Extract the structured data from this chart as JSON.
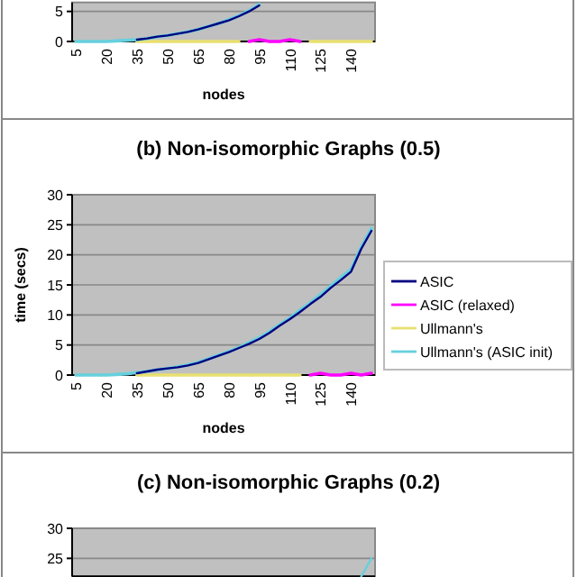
{
  "chart_data": [
    {
      "type": "line",
      "xlabel": "nodes",
      "categories": [
        "5",
        null,
        null,
        "20",
        null,
        null,
        "35",
        null,
        null,
        "50",
        null,
        null,
        "65",
        null,
        null,
        "80",
        null,
        null,
        "95",
        null,
        null,
        "110",
        null,
        null,
        "125",
        null,
        null,
        "140",
        null,
        null
      ],
      "ylim": [
        0,
        6.5
      ],
      "yticks": [
        0,
        5
      ],
      "grid": "y",
      "legend": false,
      "series": [
        {
          "color": "#000080",
          "values": [
            null,
            null,
            null,
            null,
            null,
            null,
            0.3,
            0.5,
            0.8,
            1,
            1.3,
            1.6,
            2,
            2.5,
            3,
            3.5,
            4.2,
            5,
            6,
            null,
            null,
            null,
            null,
            null,
            null,
            null,
            null,
            null,
            null,
            null
          ]
        },
        {
          "color": "#ff00ff",
          "values": [
            null,
            null,
            null,
            null,
            null,
            null,
            null,
            null,
            null,
            null,
            null,
            null,
            null,
            null,
            null,
            null,
            null,
            0,
            0.3,
            0,
            0,
            0.3,
            0,
            null,
            null,
            null,
            null,
            null,
            null,
            null
          ]
        },
        {
          "color": "#e8e070",
          "values": [
            null,
            null,
            null,
            null,
            null,
            null,
            0,
            0,
            0,
            0,
            0,
            0,
            0,
            0,
            0,
            0,
            0,
            null,
            null,
            null,
            null,
            null,
            null,
            0,
            0,
            0,
            0,
            0,
            0,
            0
          ]
        },
        {
          "color": "#66d0dd",
          "values": [
            0,
            0,
            0,
            0,
            0.1,
            0.2,
            0.3,
            0.5,
            0.8,
            1,
            1.3,
            1.6,
            2,
            2.5,
            3,
            3.6,
            4.3,
            5.1,
            6.2,
            null,
            null,
            null,
            null,
            null,
            null,
            null,
            null,
            null,
            null,
            null
          ]
        }
      ]
    },
    {
      "type": "line",
      "title": "(b)   Non-isomorphic Graphs (0.5)",
      "xlabel": "nodes",
      "ylabel": "time (secs)",
      "categories": [
        "5",
        null,
        null,
        "20",
        null,
        null,
        "35",
        null,
        null,
        "50",
        null,
        null,
        "65",
        null,
        null,
        "80",
        null,
        null,
        "95",
        null,
        null,
        "110",
        null,
        null,
        "125",
        null,
        null,
        "140",
        null,
        null
      ],
      "ylim": [
        0,
        30
      ],
      "yticks": [
        0,
        5,
        10,
        15,
        20,
        25,
        30
      ],
      "grid": "y",
      "legend": "right",
      "series": [
        {
          "name": "ASIC",
          "color": "#000080",
          "values": [
            null,
            null,
            null,
            null,
            null,
            null,
            0.3,
            0.6,
            0.9,
            1.1,
            1.3,
            1.6,
            2,
            2.6,
            3.2,
            3.8,
            4.5,
            5.2,
            6,
            7,
            8.2,
            9.3,
            10.5,
            11.8,
            13,
            14.5,
            15.8,
            17.2,
            21,
            24
          ]
        },
        {
          "name": "ASIC (relaxed)",
          "color": "#ff00ff",
          "values": [
            null,
            null,
            null,
            null,
            null,
            null,
            null,
            null,
            null,
            null,
            null,
            null,
            null,
            null,
            null,
            null,
            null,
            null,
            null,
            null,
            null,
            null,
            null,
            0,
            0.3,
            0,
            0,
            0.3,
            0,
            0.3
          ]
        },
        {
          "name": "Ullmann's",
          "color": "#e8e070",
          "values": [
            null,
            null,
            null,
            null,
            null,
            null,
            0,
            0,
            0,
            0,
            0,
            0,
            0,
            0,
            0,
            0,
            0,
            0,
            0,
            0,
            0,
            0,
            0,
            null,
            null,
            null,
            null,
            null,
            null,
            null
          ]
        },
        {
          "name": "Ullmann's (ASIC init)",
          "color": "#66d0dd",
          "values": [
            0,
            0,
            0,
            0,
            0.1,
            0.2,
            0.4,
            0.6,
            0.9,
            1.1,
            1.4,
            1.7,
            2.1,
            2.7,
            3.3,
            3.9,
            4.6,
            5.4,
            6.2,
            7.2,
            8.4,
            9.5,
            10.8,
            12,
            13.4,
            14.8,
            16.2,
            17.6,
            21.3,
            24.4
          ]
        }
      ]
    },
    {
      "type": "line",
      "title": "(c)   Non-isomorphic Graphs (0.2)",
      "categories": [
        null,
        null,
        null,
        null,
        null,
        null,
        null,
        null,
        null,
        null,
        null,
        null,
        null,
        null,
        null,
        null,
        null,
        null,
        null,
        null,
        null,
        null,
        null,
        null,
        null,
        null,
        null,
        null,
        null,
        null
      ],
      "ylim": [
        22,
        30
      ],
      "yticks": [
        25,
        30
      ],
      "grid": "y",
      "legend": false,
      "series": [
        {
          "color": "#66d0dd",
          "values": [
            null,
            null,
            null,
            null,
            null,
            null,
            null,
            null,
            null,
            null,
            null,
            null,
            null,
            null,
            null,
            null,
            null,
            null,
            null,
            null,
            null,
            null,
            null,
            null,
            null,
            null,
            null,
            null,
            22,
            25
          ]
        }
      ]
    }
  ]
}
